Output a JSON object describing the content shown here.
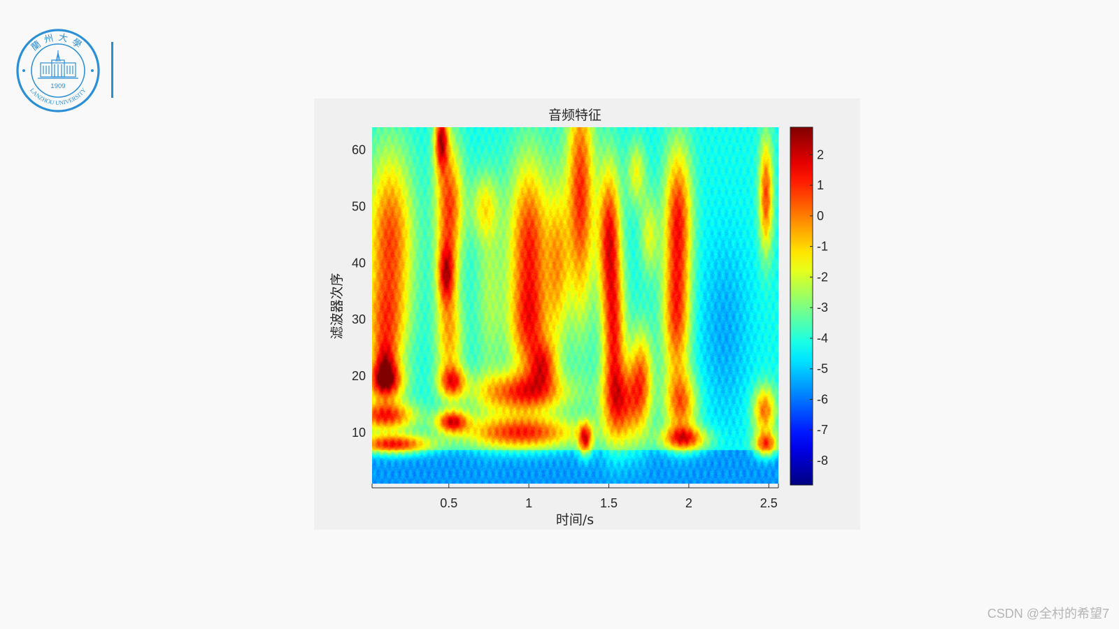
{
  "logo": {
    "top_text": "蘭州大學",
    "bottom_text": "LANZHOU   UNIVERSITY",
    "year": "1909",
    "color": "#2b8fd6"
  },
  "watermark": "CSDN @全村的希望7",
  "chart_data": {
    "type": "heatmap",
    "title": "音频特征",
    "xlabel": "时间/s",
    "ylabel": "滤波器次序",
    "xlim": [
      0.02,
      2.56
    ],
    "ylim": [
      1,
      64
    ],
    "x_ticks": [
      0.5,
      1,
      1.5,
      2,
      2.5
    ],
    "x_tick_labels": [
      "0.5",
      "1",
      "1.5",
      "2",
      "2.5"
    ],
    "y_ticks": [
      10,
      20,
      30,
      40,
      50,
      60
    ],
    "y_tick_labels": [
      "10",
      "20",
      "30",
      "40",
      "50",
      "60"
    ],
    "colorbar": {
      "colormap": "jet",
      "range": [
        -8.8,
        2.9
      ],
      "ticks": [
        2,
        1,
        0,
        -1,
        -2,
        -3,
        -4,
        -5,
        -6,
        -7,
        -8
      ],
      "tick_labels": [
        "2",
        "1",
        "0",
        "-1",
        "-2",
        "-3",
        "-4",
        "-5",
        "-6",
        "-7",
        "-8"
      ]
    },
    "grid": false,
    "background_value": -4.2,
    "low_band_value": -5.6,
    "low_band_filter_max": 7,
    "blobs": [
      {
        "t": 0.13,
        "f": 44,
        "st": 0.1,
        "sf": 11,
        "v": 1.2
      },
      {
        "t": 0.1,
        "f": 28,
        "st": 0.09,
        "sf": 6,
        "v": -0.6
      },
      {
        "t": 0.1,
        "f": 19,
        "st": 0.08,
        "sf": 2.2,
        "v": 1.2
      },
      {
        "t": 0.1,
        "f": 13,
        "st": 0.13,
        "sf": 1.8,
        "v": 1.6
      },
      {
        "t": 0.15,
        "f": 8,
        "st": 0.16,
        "sf": 1.2,
        "v": 1.8
      },
      {
        "t": 0.45,
        "f": 62,
        "st": 0.03,
        "sf": 4,
        "v": 2.0
      },
      {
        "t": 0.5,
        "f": 50,
        "st": 0.06,
        "sf": 8,
        "v": 1.4
      },
      {
        "t": 0.48,
        "f": 38,
        "st": 0.04,
        "sf": 4,
        "v": 0.9
      },
      {
        "t": 0.5,
        "f": 27,
        "st": 0.06,
        "sf": 6,
        "v": -0.2
      },
      {
        "t": 0.52,
        "f": 19,
        "st": 0.06,
        "sf": 2,
        "v": 0.5
      },
      {
        "t": 0.52,
        "f": 12,
        "st": 0.07,
        "sf": 1.4,
        "v": 1.8
      },
      {
        "t": 0.72,
        "f": 50,
        "st": 0.06,
        "sf": 4,
        "v": -1.6
      },
      {
        "t": 0.95,
        "f": 17,
        "st": 0.2,
        "sf": 2.6,
        "v": 1.2
      },
      {
        "t": 0.95,
        "f": 10,
        "st": 0.24,
        "sf": 2.0,
        "v": 1.6
      },
      {
        "t": 1.0,
        "f": 43,
        "st": 0.09,
        "sf": 11,
        "v": 1.6
      },
      {
        "t": 1.0,
        "f": 28,
        "st": 0.09,
        "sf": 6,
        "v": -0.5
      },
      {
        "t": 1.32,
        "f": 52,
        "st": 0.06,
        "sf": 15,
        "v": 1.6
      },
      {
        "t": 1.18,
        "f": 40,
        "st": 0.05,
        "sf": 10,
        "v": -0.8
      },
      {
        "t": 1.35,
        "f": 9,
        "st": 0.03,
        "sf": 2,
        "v": 1.3
      },
      {
        "t": 1.5,
        "f": 45,
        "st": 0.05,
        "sf": 9,
        "v": 1.8
      },
      {
        "t": 1.53,
        "f": 27,
        "st": 0.05,
        "sf": 9,
        "v": 1.1
      },
      {
        "t": 1.58,
        "f": 15,
        "st": 0.09,
        "sf": 5,
        "v": 0.7
      },
      {
        "t": 1.7,
        "f": 20,
        "st": 0.05,
        "sf": 6,
        "v": 0.2
      },
      {
        "t": 1.93,
        "f": 48,
        "st": 0.06,
        "sf": 9,
        "v": 1.6
      },
      {
        "t": 1.92,
        "f": 30,
        "st": 0.06,
        "sf": 8,
        "v": 0.9
      },
      {
        "t": 1.95,
        "f": 15,
        "st": 0.07,
        "sf": 4,
        "v": 0.4
      },
      {
        "t": 1.97,
        "f": 9,
        "st": 0.1,
        "sf": 1.5,
        "v": 1.2
      },
      {
        "t": 2.48,
        "f": 52,
        "st": 0.03,
        "sf": 7,
        "v": 1.2
      },
      {
        "t": 2.47,
        "f": 14,
        "st": 0.05,
        "sf": 3,
        "v": 0.7
      },
      {
        "t": 2.48,
        "f": 8,
        "st": 0.05,
        "sf": 1.5,
        "v": 1.0
      },
      {
        "t": 2.22,
        "f": 28,
        "st": 0.12,
        "sf": 12,
        "v": -5.5
      },
      {
        "t": 0.75,
        "f": 35,
        "st": 0.06,
        "sf": 12,
        "v": -2.4
      },
      {
        "t": 0.1,
        "f": 22,
        "st": 0.05,
        "sf": 3,
        "v": -0.8
      },
      {
        "t": 1.09,
        "f": 22,
        "st": 0.06,
        "sf": 3,
        "v": -0.2
      },
      {
        "t": 1.75,
        "f": 45,
        "st": 0.04,
        "sf": 5,
        "v": -1.6
      },
      {
        "t": 1.67,
        "f": 56,
        "st": 0.04,
        "sf": 4,
        "v": -1.4
      }
    ]
  }
}
